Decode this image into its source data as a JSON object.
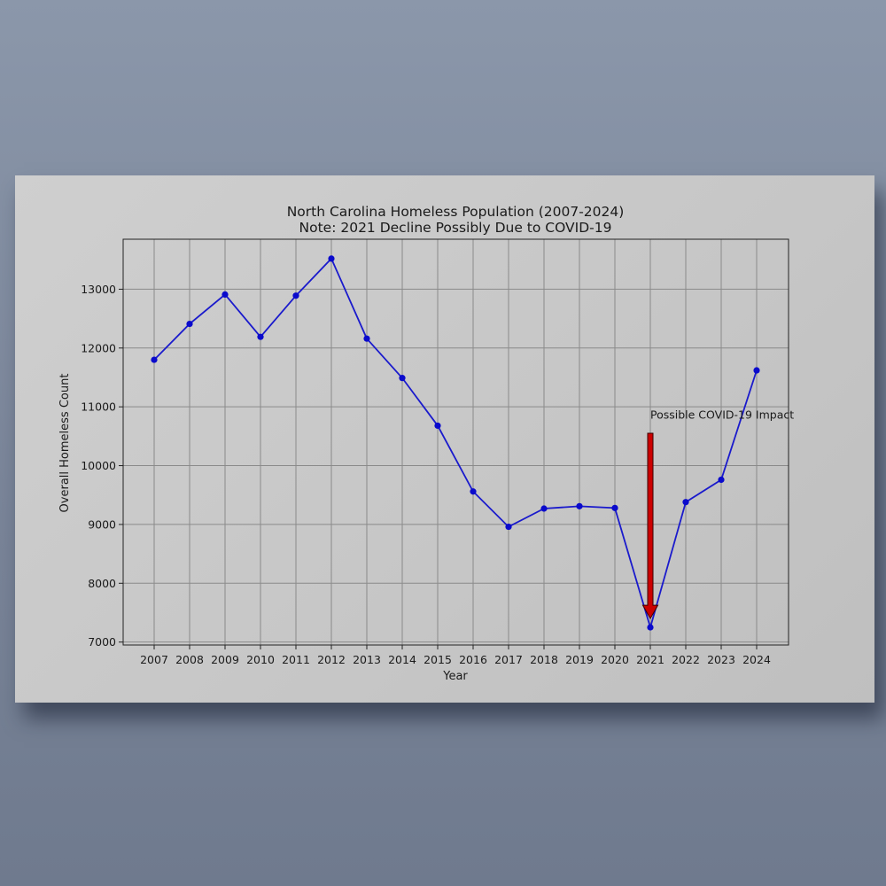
{
  "chart_data": {
    "type": "line",
    "title": "North Carolina Homeless Population (2007-2024)",
    "subtitle": "Note: 2021 Decline Possibly Due to COVID-19",
    "xlabel": "Year",
    "ylabel": "Overall Homeless Count",
    "x": [
      "2007",
      "2008",
      "2009",
      "2010",
      "2011",
      "2012",
      "2013",
      "2014",
      "2015",
      "2016",
      "2017",
      "2018",
      "2019",
      "2020",
      "2021",
      "2022",
      "2023",
      "2024"
    ],
    "series": [
      {
        "values": [
          11800,
          12410,
          12910,
          12190,
          12890,
          13520,
          12160,
          11490,
          10680,
          9560,
          8960,
          9270,
          9310,
          9280,
          7250,
          9380,
          9760,
          11620
        ]
      }
    ],
    "yticks": [
      "7000",
      "8000",
      "9000",
      "10000",
      "11000",
      "12000",
      "13000"
    ],
    "ylim": [
      6950,
      13850
    ],
    "grid": true,
    "line_color": "#1a1acc",
    "marker_color": "#0a0acc",
    "annotation": {
      "text": "Possible COVID-19 Impact",
      "x": "2021",
      "text_y": 10800,
      "arrow_from_y": 10550,
      "arrow_to_y": 7400,
      "arrow_color": "#cc0000"
    }
  }
}
